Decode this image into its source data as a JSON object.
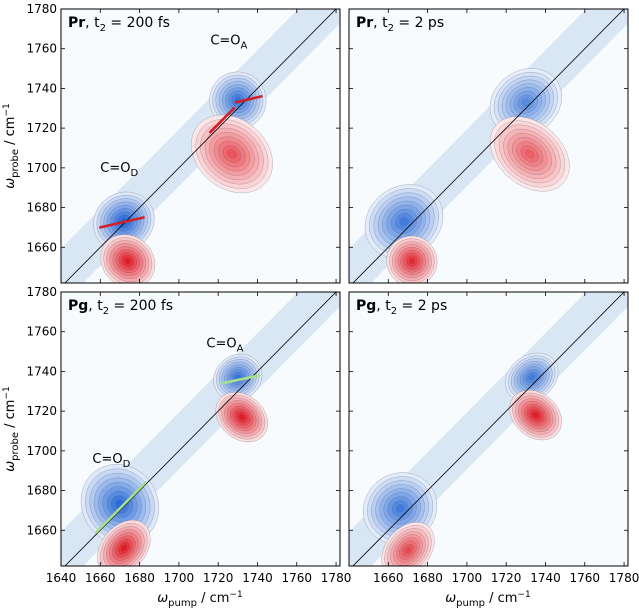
{
  "chart_data": {
    "type": "heatmap",
    "description_axes": {
      "xlabel_main": "ω",
      "xlabel_sub": "pump",
      "xlabel_unit": " / cm",
      "xlabel_exp": "−1",
      "ylabel_main": "ω",
      "ylabel_sub": "probe",
      "ylabel_unit": " / cm",
      "ylabel_exp": "−1"
    },
    "x_ticks": [
      1640,
      1660,
      1680,
      1700,
      1720,
      1740,
      1760,
      1780
    ],
    "x_ticks_right": [
      1660,
      1680,
      1700,
      1720,
      1740,
      1760,
      1780
    ],
    "y_ticks": [
      1660,
      1680,
      1700,
      1720,
      1740,
      1760,
      1780
    ],
    "xlim": [
      1640,
      1782
    ],
    "ylim": [
      1642,
      1780
    ],
    "colors": {
      "negative": "#2f6fd8",
      "positive": "#e0202a",
      "diagonal": "#000000"
    },
    "panels": [
      {
        "id": "pr-200fs",
        "label_bold": "Pr",
        "label_rest": ", t",
        "label_sub": "2",
        "label_tail": " = 200 fs",
        "annotations": [
          {
            "main": "C=O",
            "sub": "D",
            "x": 1660,
            "y": 1698
          },
          {
            "main": "C=O",
            "sub": "A",
            "x": 1716,
            "y": 1762
          }
        ],
        "slope_lines": [
          {
            "x1": 1660,
            "y1": 1670,
            "x2": 1682,
            "y2": 1675,
            "color": "#d2202a"
          },
          {
            "x1": 1716,
            "y1": 1718,
            "x2": 1728,
            "y2": 1730,
            "color": "#d2202a"
          },
          {
            "x1": 1729,
            "y1": 1733,
            "x2": 1742,
            "y2": 1736,
            "color": "#d2202a"
          }
        ],
        "peaks": [
          {
            "sign": -1,
            "x": 1672,
            "y": 1673,
            "sx": 10,
            "sy": 9,
            "amp": 1.0
          },
          {
            "sign": 1,
            "x": 1674,
            "y": 1653,
            "sx": 8,
            "sy": 9,
            "amp": 1.0
          },
          {
            "sign": -1,
            "x": 1730,
            "y": 1734,
            "sx": 9,
            "sy": 9,
            "amp": 0.9
          },
          {
            "sign": 1,
            "x": 1727,
            "y": 1707,
            "sx": 11,
            "sy": 14,
            "amp": 0.75
          }
        ]
      },
      {
        "id": "pr-2ps",
        "label_bold": "Pr",
        "label_rest": ", t",
        "label_sub": "2",
        "label_tail": " = 2 ps",
        "annotations": [],
        "slope_lines": [],
        "peaks": [
          {
            "sign": -1,
            "x": 1668,
            "y": 1673,
            "sx": 13,
            "sy": 11,
            "amp": 0.85
          },
          {
            "sign": 1,
            "x": 1672,
            "y": 1653,
            "sx": 8,
            "sy": 8,
            "amp": 0.95
          },
          {
            "sign": -1,
            "x": 1730,
            "y": 1733,
            "sx": 12,
            "sy": 10,
            "amp": 0.75
          },
          {
            "sign": 1,
            "x": 1732,
            "y": 1707,
            "sx": 10,
            "sy": 14,
            "amp": 0.7
          }
        ]
      },
      {
        "id": "pg-200fs",
        "label_bold": "Pg",
        "label_rest": ", t",
        "label_sub": "2",
        "label_tail": " = 200 fs",
        "annotations": [
          {
            "main": "C=O",
            "sub": "D",
            "x": 1656,
            "y": 1694
          },
          {
            "main": "C=O",
            "sub": "A",
            "x": 1714,
            "y": 1752
          }
        ],
        "slope_lines": [
          {
            "x1": 1658,
            "y1": 1659,
            "x2": 1683,
            "y2": 1684,
            "color": "#a6e08c"
          },
          {
            "x1": 1722,
            "y1": 1734,
            "x2": 1741,
            "y2": 1738,
            "color": "#a6e08c"
          }
        ],
        "peaks": [
          {
            "sign": -1,
            "x": 1670,
            "y": 1673,
            "sx": 12,
            "sy": 13,
            "amp": 0.95
          },
          {
            "sign": 1,
            "x": 1672,
            "y": 1651,
            "sx": 10,
            "sy": 7,
            "amp": 1.0
          },
          {
            "sign": -1,
            "x": 1730,
            "y": 1737,
            "sx": 8,
            "sy": 7,
            "amp": 0.9
          },
          {
            "sign": 1,
            "x": 1732,
            "y": 1717,
            "sx": 7,
            "sy": 9,
            "amp": 1.0
          }
        ]
      },
      {
        "id": "pg-2ps",
        "label_bold": "Pg",
        "label_rest": ", t",
        "label_sub": "2",
        "label_tail": " = 2 ps",
        "annotations": [],
        "slope_lines": [],
        "peaks": [
          {
            "sign": -1,
            "x": 1666,
            "y": 1671,
            "sx": 12,
            "sy": 11,
            "amp": 0.85
          },
          {
            "sign": 1,
            "x": 1670,
            "y": 1650,
            "sx": 10,
            "sy": 7,
            "amp": 0.8
          },
          {
            "sign": -1,
            "x": 1733,
            "y": 1737,
            "sx": 9,
            "sy": 7,
            "amp": 0.85
          },
          {
            "sign": 1,
            "x": 1735,
            "y": 1718,
            "sx": 7,
            "sy": 9,
            "amp": 1.0
          }
        ]
      }
    ]
  }
}
